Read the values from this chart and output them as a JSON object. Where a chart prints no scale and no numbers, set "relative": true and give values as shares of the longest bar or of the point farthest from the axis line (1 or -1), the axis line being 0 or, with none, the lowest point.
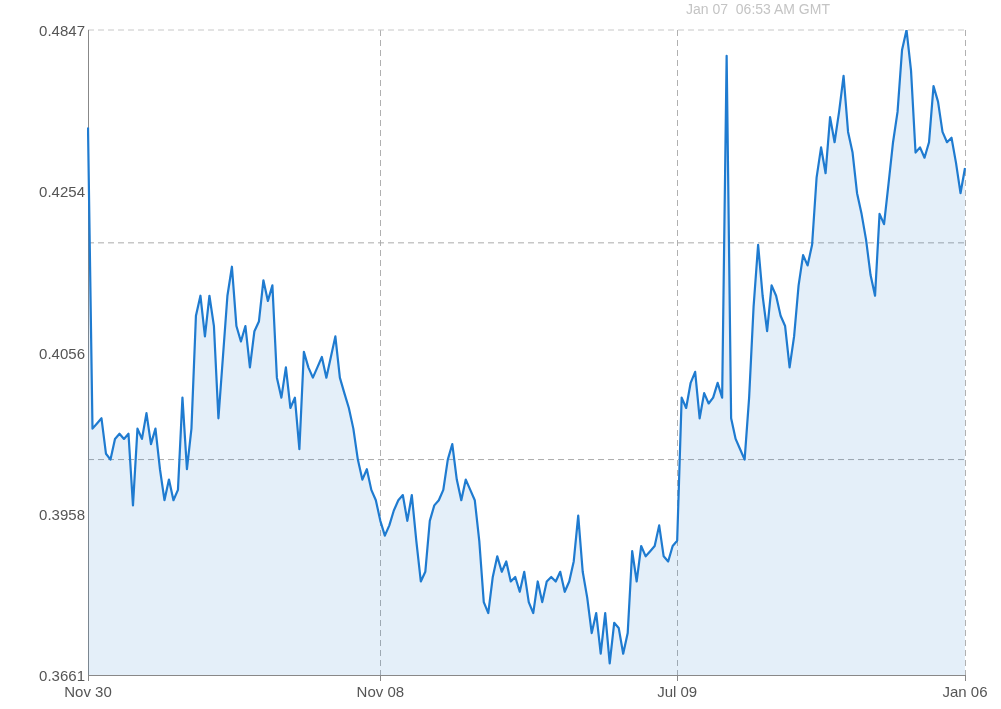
{
  "chart_data": {
    "type": "area",
    "relative": true,
    "annotations": [
      "0.4847",
      "0.4254",
      "0.4056",
      "0.3958",
      "0.3661",
      "Jan 07  06:53 AM GMT"
    ],
    "categories": [
      "Nov 30",
      null,
      null,
      null,
      null,
      null,
      null,
      null,
      null,
      null,
      null,
      null,
      null,
      null,
      null,
      null,
      null,
      null,
      null,
      null,
      null,
      null,
      null,
      null,
      null,
      null,
      null,
      null,
      null,
      null,
      null,
      null,
      null,
      null,
      null,
      null,
      null,
      null,
      null,
      null,
      null,
      null,
      null,
      null,
      null,
      null,
      null,
      null,
      null,
      null,
      null,
      null,
      null,
      null,
      null,
      null,
      null,
      null,
      null,
      null,
      null,
      null,
      null,
      null,
      null,
      "Nov 08",
      null,
      null,
      null,
      null,
      null,
      null,
      null,
      null,
      null,
      null,
      null,
      null,
      null,
      null,
      null,
      null,
      null,
      null,
      null,
      null,
      null,
      null,
      null,
      null,
      null,
      null,
      null,
      null,
      null,
      null,
      null,
      null,
      null,
      null,
      null,
      null,
      null,
      null,
      null,
      null,
      null,
      null,
      null,
      null,
      null,
      null,
      null,
      null,
      null,
      null,
      null,
      null,
      null,
      null,
      null,
      null,
      null,
      null,
      null,
      null,
      null,
      null,
      null,
      null,
      null,
      "Jul 09",
      null,
      null,
      null,
      null,
      null,
      null,
      null,
      null,
      null,
      null,
      null,
      null,
      null,
      null,
      null,
      null,
      null,
      null,
      null,
      null,
      null,
      null,
      null,
      null,
      null,
      null,
      null,
      null,
      null,
      null,
      null,
      null,
      null,
      null,
      null,
      null,
      null,
      null,
      null,
      null,
      null,
      null,
      null,
      null,
      null,
      null,
      null,
      null,
      null,
      null,
      null,
      null,
      null,
      null,
      null,
      null,
      null,
      null,
      null,
      null,
      null,
      null,
      null,
      "Jan 06"
    ],
    "ref_lines": [
      {
        "axis": "y",
        "value": 0.67,
        "label": null,
        "color": "#aaaaaa",
        "line_style": "dashed"
      },
      {
        "axis": "y",
        "value": 0.334,
        "label": null,
        "color": "#aaaaaa",
        "line_style": "dashed"
      }
    ],
    "grid": "x",
    "legend": false,
    "marker": "none",
    "line_style": "solid",
    "series": [
      {
        "color": "#1f7bd0",
        "values": [
          0.849,
          0.382,
          0.39,
          0.398,
          0.343,
          0.334,
          0.366,
          0.374,
          0.366,
          0.374,
          0.263,
          0.382,
          0.366,
          0.406,
          0.358,
          0.382,
          0.319,
          0.271,
          0.303,
          0.271,
          0.287,
          0.43,
          0.319,
          0.382,
          0.557,
          0.588,
          0.525,
          0.588,
          0.541,
          0.398,
          0.493,
          0.588,
          0.633,
          0.541,
          0.517,
          0.541,
          0.477,
          0.533,
          0.548,
          0.612,
          0.58,
          0.604,
          0.461,
          0.43,
          0.477,
          0.414,
          0.43,
          0.35,
          0.501,
          0.477,
          0.461,
          0.477,
          0.493,
          0.461,
          0.493,
          0.525,
          0.461,
          0.437,
          0.414,
          0.382,
          0.334,
          0.303,
          0.319,
          0.287,
          0.271,
          0.239,
          0.216,
          0.232,
          0.255,
          0.271,
          0.279,
          0.239,
          0.279,
          0.208,
          0.145,
          0.16,
          0.239,
          0.263,
          0.271,
          0.287,
          0.334,
          0.358,
          0.303,
          0.271,
          0.303,
          0.287,
          0.271,
          0.208,
          0.113,
          0.096,
          0.152,
          0.184,
          0.16,
          0.176,
          0.145,
          0.152,
          0.129,
          0.16,
          0.113,
          0.096,
          0.145,
          0.113,
          0.145,
          0.152,
          0.145,
          0.16,
          0.129,
          0.145,
          0.176,
          0.247,
          0.16,
          0.12,
          0.065,
          0.096,
          0.033,
          0.096,
          0.018,
          0.081,
          0.073,
          0.033,
          0.065,
          0.192,
          0.145,
          0.2,
          0.184,
          0.192,
          0.2,
          0.232,
          0.184,
          0.176,
          0.2,
          0.208,
          0.43,
          0.414,
          0.453,
          0.47,
          0.398,
          0.437,
          0.421,
          0.43,
          0.453,
          0.43,
          0.96,
          0.398,
          0.366,
          0.35,
          0.334,
          0.43,
          0.572,
          0.667,
          0.588,
          0.533,
          0.604,
          0.588,
          0.557,
          0.541,
          0.477,
          0.525,
          0.604,
          0.651,
          0.635,
          0.667,
          0.771,
          0.818,
          0.778,
          0.865,
          0.826,
          0.873,
          0.929,
          0.842,
          0.81,
          0.747,
          0.715,
          0.675,
          0.62,
          0.588,
          0.715,
          0.699,
          0.762,
          0.826,
          0.873,
          0.969,
          1,
          0.937,
          0.81,
          0.818,
          0.802,
          0.826,
          0.913,
          0.889,
          0.842,
          0.826,
          0.833,
          0.794,
          0.747,
          0.786
        ]
      }
    ]
  }
}
